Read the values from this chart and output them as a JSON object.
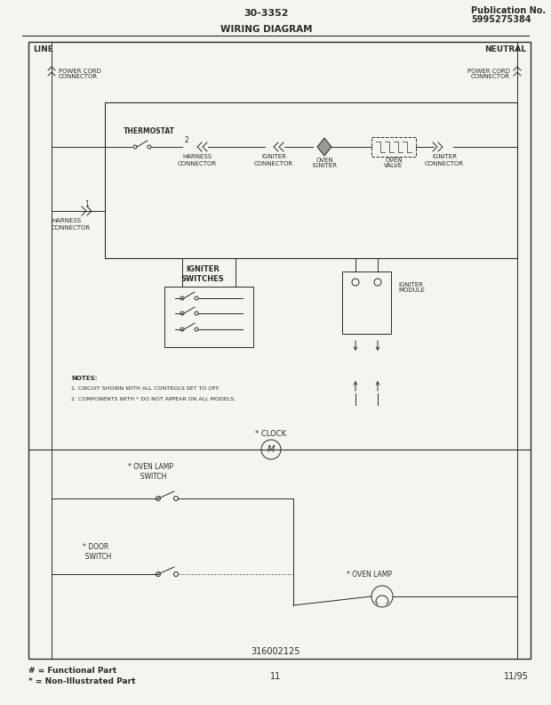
{
  "title_center": "30-3352",
  "title_right_line1": "Publication No.",
  "title_right_line2": "5995275384",
  "subtitle": "WIRING DIAGRAM",
  "bottom_label": "316002125",
  "page_number": "11",
  "date": "11/95",
  "legend_line1": "# = Functional Part",
  "legend_line2": "* = Non-Illustrated Part",
  "bg_color": "#f5f5f0",
  "line_color": "#2a2a2a",
  "box_bg": "#f5f5f0"
}
